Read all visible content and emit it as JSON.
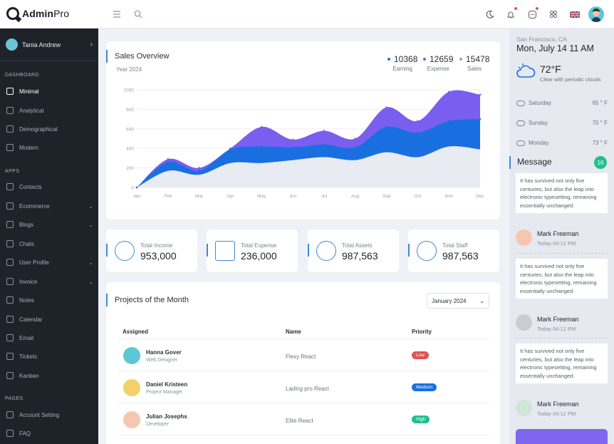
{
  "app": {
    "logo_bold": "Admin",
    "logo_light": "Pro"
  },
  "topbar": {
    "icons": [
      "menu-icon",
      "search-icon",
      "moon-icon",
      "bell-icon",
      "message-icon",
      "apps-icon",
      "flag-uk-icon"
    ]
  },
  "sidebar": {
    "user": "Tania Andrew",
    "sections": {
      "dashboard": "DASHBOARD",
      "apps": "APPS",
      "pages": "PAGES"
    },
    "dashboard_items": [
      "Minimal",
      "Analytical",
      "Demographical",
      "Modern"
    ],
    "app_items": [
      "Contacts",
      "Ecommerce",
      "Blogs",
      "Chats",
      "User Profile",
      "Invoice",
      "Notes",
      "Calendar",
      "Email",
      "Tickets",
      "Kanban"
    ],
    "page_items": [
      "Account Setting",
      "FAQ"
    ]
  },
  "sales": {
    "title": "Sales Overview",
    "subtitle": "Year 2024",
    "legend": [
      {
        "value": "10368",
        "label": "Earning",
        "color": "#1a73e8"
      },
      {
        "value": "12659",
        "label": "Expense",
        "color": "#7b5cf0"
      },
      {
        "value": "15478",
        "label": "Sales",
        "color": "#9aa1ad"
      }
    ]
  },
  "chart_data": {
    "type": "area",
    "x": [
      "Jan",
      "Feb",
      "Mar",
      "Apr",
      "May",
      "Jun",
      "Jul",
      "Aug",
      "Sep",
      "Oct",
      "Nov",
      "Dec"
    ],
    "ylim": [
      0,
      1000
    ],
    "yticks": [
      "0",
      "200",
      "400",
      "600",
      "800",
      "1000"
    ],
    "series": [
      {
        "name": "Sales",
        "color": "#e8ebf1",
        "values": [
          0,
          170,
          130,
          250,
          250,
          280,
          310,
          280,
          360,
          310,
          420,
          390
        ]
      },
      {
        "name": "Earning",
        "color": "#1a6fe0",
        "values": [
          0,
          260,
          170,
          390,
          420,
          410,
          440,
          410,
          620,
          560,
          680,
          700
        ]
      },
      {
        "name": "Expense",
        "color": "#7a5ef0",
        "values": [
          0,
          290,
          200,
          400,
          620,
          490,
          580,
          500,
          820,
          680,
          980,
          950
        ]
      }
    ]
  },
  "stats": [
    {
      "label": "Total Income",
      "value": "953,000"
    },
    {
      "label": "Total Expense",
      "value": "236,000"
    },
    {
      "label": "Total Assets",
      "value": "987,563"
    },
    {
      "label": "Total Staff",
      "value": "987,563"
    }
  ],
  "projects": {
    "title": "Projects of the Month",
    "month": "January 2024",
    "headers": {
      "assigned": "Assigned",
      "name": "Name",
      "priority": "Priority"
    },
    "rows": [
      {
        "name": "Hanna Gover",
        "role": "Web Designer",
        "project": "Flexy React",
        "priority": "Low",
        "color": "#e05353"
      },
      {
        "name": "Daniel Kristeen",
        "role": "Project Manager",
        "project": "Lading pro React",
        "priority": "Medium",
        "color": "#1a6fe0"
      },
      {
        "name": "Julian Josephs",
        "role": "Developer",
        "project": "Elite React",
        "priority": "High",
        "color": "#1ec28b"
      }
    ]
  },
  "weather": {
    "city": "San Francisco, CA",
    "date": "Mon, July 14 11 AM",
    "temp": "72°F",
    "condition": "Clear with periodic clouds",
    "forecast": [
      {
        "day": "Saturday",
        "temp": "65 ° F"
      },
      {
        "day": "Sunday",
        "temp": "70 ° F"
      },
      {
        "day": "Monday",
        "temp": "73 ° F"
      }
    ]
  },
  "messages": {
    "title": "Message",
    "count": "16",
    "items": [
      {
        "text": "It has survived not only five centuries, but also the leap into electronic typesetting, remaining essentially unchanged.",
        "name": "Mark Freeman",
        "time": "Today 04:12 PM"
      },
      {
        "text": "It has survived not only five centuries, but also the leap into electronic typesetting, remaining essentially unchanged.",
        "name": "Mark Freeman",
        "time": "Today 04:12 PM"
      },
      {
        "text": "It has survived not only five centuries, but also the leap into electronic typesetting, remaining essentially unchanged.",
        "name": "Mark Freeman",
        "time": "Today 04:12 PM"
      }
    ]
  }
}
